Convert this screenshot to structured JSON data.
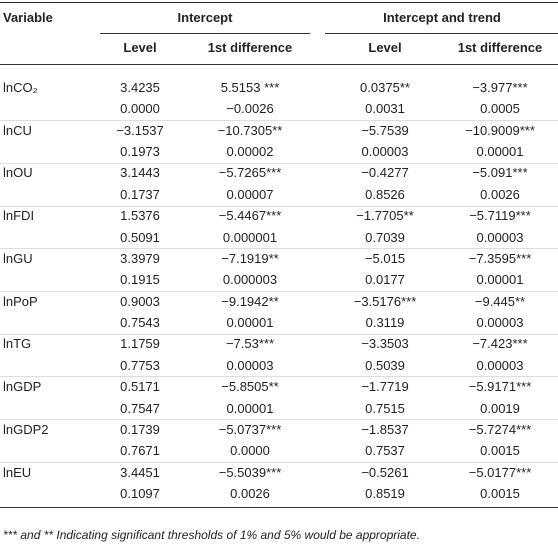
{
  "table": {
    "header": {
      "variable": "Variable",
      "groups": [
        "Intercept",
        "Intercept and trend"
      ],
      "columns": [
        "Level",
        "1st difference",
        "Level",
        "1st difference"
      ]
    },
    "rows": [
      {
        "variable": "lnCO₂",
        "values": [
          [
            "3.4235",
            "5.5153 ***",
            "0.0375**",
            "−3.977***"
          ],
          [
            "0.0000",
            "−0.0026",
            "0.0031",
            "0.0005"
          ]
        ]
      },
      {
        "variable": "lnCU",
        "values": [
          [
            "−3.1537",
            "−10.7305**",
            "−5.7539",
            "−10.9009***"
          ],
          [
            "0.1973",
            "0.00002",
            "0.00003",
            "0.00001"
          ]
        ]
      },
      {
        "variable": "lnOU",
        "values": [
          [
            "3.1443",
            "−5.7265***",
            "−0.4277",
            "−5.091***"
          ],
          [
            "0.1737",
            "0.00007",
            "0.8526",
            "0.0026"
          ]
        ]
      },
      {
        "variable": "lnFDI",
        "values": [
          [
            "1.5376",
            "−5.4467***",
            "−1.7705**",
            "−5.7119***"
          ],
          [
            "0.5091",
            "0.000001",
            "0.7039",
            "0.00003"
          ]
        ]
      },
      {
        "variable": "lnGU",
        "values": [
          [
            "3.3979",
            "−7.1919**",
            "−5.015",
            "−7.3595***"
          ],
          [
            "0.1915",
            "0.000003",
            "0.0177",
            "0.00001"
          ]
        ]
      },
      {
        "variable": "lnPoP",
        "values": [
          [
            "0.9003",
            "−9.1942**",
            "−3.5176***",
            "−9.445**"
          ],
          [
            "0.7543",
            "0.00001",
            "0.3119",
            "0.00003"
          ]
        ]
      },
      {
        "variable": "lnTG",
        "values": [
          [
            "1.1759",
            "−7.53***",
            "−3.3503",
            "−7.423***"
          ],
          [
            "0.7753",
            "0.00003",
            "0.5039",
            "0.00003"
          ]
        ]
      },
      {
        "variable": "lnGDP",
        "values": [
          [
            "0.5171",
            "−5.8505**",
            "−1.7719",
            "−5.9171***"
          ],
          [
            "0.7547",
            "0.00001",
            "0.7515",
            "0.0019"
          ]
        ]
      },
      {
        "variable": "lnGDP2",
        "values": [
          [
            "0.1739",
            "−5.0737***",
            "−1.8537",
            "−5.7274***"
          ],
          [
            "0.7671",
            "0.0000",
            "0.7537",
            "0.0015"
          ]
        ]
      },
      {
        "variable": "lnEU",
        "values": [
          [
            "3.4451",
            "−5.5039***",
            "−0.5261",
            "−5.0177***"
          ],
          [
            "0.1097",
            "0.0026",
            "0.8519",
            "0.0015"
          ]
        ]
      }
    ],
    "footnote": "*** and ** Indicating significant thresholds of 1% and 5% would be appropriate."
  }
}
